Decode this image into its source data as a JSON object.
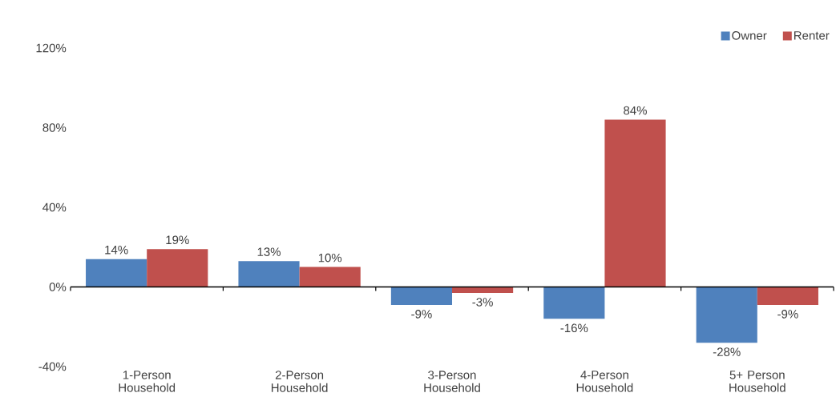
{
  "chart_data": {
    "type": "bar",
    "categories": [
      "1-Person Household",
      "2-Person Household",
      "3-Person Household",
      "4-Person Household",
      "5+ Person Household"
    ],
    "series": [
      {
        "name": "Owner",
        "color": "#4f81bd",
        "values": [
          14,
          13,
          -9,
          -16,
          -28
        ],
        "value_labels": [
          "14%",
          "13%",
          "-9%",
          "-16%",
          "-28%"
        ]
      },
      {
        "name": "Renter",
        "color": "#c0504d",
        "values": [
          19,
          10,
          -3,
          84,
          -9
        ],
        "value_labels": [
          "19%",
          "10%",
          "-3%",
          "84%",
          "-9%"
        ]
      }
    ],
    "ylim": [
      -40,
      120
    ],
    "yticks": [
      {
        "value": -40,
        "label": "-40%"
      },
      {
        "value": 0,
        "label": "0%"
      },
      {
        "value": 40,
        "label": "40%"
      },
      {
        "value": 80,
        "label": "80%"
      },
      {
        "value": 120,
        "label": "120%"
      }
    ],
    "legend": "top right"
  }
}
